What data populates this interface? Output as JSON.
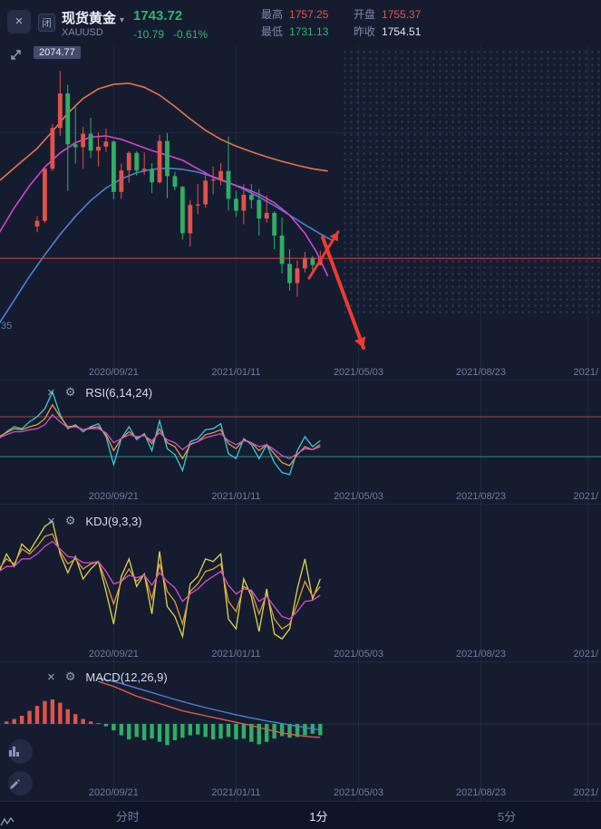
{
  "colors": {
    "up_candle": "#e0534b",
    "down_candle": "#2fae66",
    "price_line": "#e0443c",
    "text_green": "#33b46a",
    "text_red": "#e0534b",
    "annotation_red": "#ed3b30"
  },
  "header": {
    "market_badge": "闭",
    "symbol_name": "现货黄金",
    "symbol_code": "XAUUSD",
    "price": "1743.72",
    "change": "-10.79",
    "change_pct": "-0.61%",
    "stats": [
      {
        "label": "最高",
        "value": "1757.25",
        "color": "red"
      },
      {
        "label": "最低",
        "value": "1731.13",
        "color": "green"
      },
      {
        "label": "开盘",
        "value": "1755.37",
        "color": "red"
      },
      {
        "label": "昨收",
        "value": "1754.51",
        "color": "white"
      }
    ]
  },
  "main_chart": {
    "high_label": "2074.77",
    "left_axis_label": "35"
  },
  "panels": {
    "rsi": {
      "label": "RSI(6,14,24)"
    },
    "kdj": {
      "label": "KDJ(9,3,3)"
    },
    "macd": {
      "label": "MACD(12,26,9)"
    }
  },
  "bottom_tabs": [
    {
      "label": "分时",
      "active": false
    },
    {
      "label": "1分",
      "active": true
    },
    {
      "label": "5分",
      "active": false
    }
  ],
  "chart_data": [
    {
      "type": "candlestick",
      "ylim": [
        1560,
        2120
      ],
      "x_tick_indices": [
        10,
        26,
        42,
        58,
        72
      ],
      "x_tick_labels": [
        "2020/09/21",
        "2021/01/11",
        "2021/05/03",
        "2021/08/23",
        "2021/"
      ],
      "grid_prices": [
        1966
      ],
      "current_price": 1743.72,
      "high_label_value": 2074.77,
      "ohlc": [
        [
          1800,
          1818,
          1790,
          1810
        ],
        [
          1810,
          1906,
          1806,
          1902
        ],
        [
          1902,
          1981,
          1898,
          1974
        ],
        [
          1974,
          2074.77,
          1960,
          2035
        ],
        [
          2035,
          2050,
          1863,
          1945
        ],
        [
          1945,
          2015,
          1911,
          1940
        ],
        [
          1940,
          1976,
          1902,
          1964
        ],
        [
          1964,
          1992,
          1921,
          1934
        ],
        [
          1934,
          1966,
          1906,
          1941
        ],
        [
          1941,
          1973,
          1932,
          1950
        ],
        [
          1950,
          1952,
          1848,
          1861
        ],
        [
          1861,
          1911,
          1849,
          1899
        ],
        [
          1899,
          1933,
          1877,
          1930
        ],
        [
          1930,
          1933,
          1890,
          1899
        ],
        [
          1899,
          1931,
          1891,
          1902
        ],
        [
          1902,
          1912,
          1859,
          1878
        ],
        [
          1878,
          1962,
          1876,
          1951
        ],
        [
          1951,
          1965,
          1850,
          1889
        ],
        [
          1889,
          1897,
          1864,
          1870
        ],
        [
          1870,
          1872,
          1777,
          1788
        ],
        [
          1788,
          1847,
          1765,
          1838
        ],
        [
          1838,
          1875,
          1822,
          1839
        ],
        [
          1839,
          1897,
          1833,
          1881
        ],
        [
          1881,
          1906,
          1857,
          1883
        ],
        [
          1883,
          1912,
          1873,
          1898
        ],
        [
          1898,
          1959,
          1828,
          1849
        ],
        [
          1849,
          1863,
          1817,
          1828
        ],
        [
          1828,
          1875,
          1804,
          1856
        ],
        [
          1856,
          1875,
          1832,
          1847
        ],
        [
          1847,
          1866,
          1784,
          1814
        ],
        [
          1814,
          1855,
          1807,
          1824
        ],
        [
          1824,
          1827,
          1760,
          1784
        ],
        [
          1784,
          1816,
          1717,
          1734
        ],
        [
          1734,
          1760,
          1687,
          1700
        ],
        [
          1700,
          1740,
          1676,
          1726
        ],
        [
          1726,
          1755,
          1719,
          1745
        ],
        [
          1745,
          1748,
          1720,
          1732
        ],
        [
          1732,
          1757.25,
          1731.13,
          1743.72
        ]
      ],
      "ma_series": [
        {
          "name": "ma-slow",
          "color": "#e8734a",
          "points": [
            [
              -5,
              1880
            ],
            [
              -2,
              1915
            ],
            [
              0,
              1938
            ],
            [
              2,
              1968
            ],
            [
              4,
              2000
            ],
            [
              6,
              2026
            ],
            [
              8,
              2043
            ],
            [
              10,
              2051
            ],
            [
              12,
              2053
            ],
            [
              14,
              2046
            ],
            [
              16,
              2032
            ],
            [
              18,
              2012
            ],
            [
              20,
              1990
            ],
            [
              22,
              1970
            ],
            [
              24,
              1954
            ],
            [
              26,
              1942
            ],
            [
              28,
              1932
            ],
            [
              30,
              1923
            ],
            [
              32,
              1915
            ],
            [
              34,
              1908
            ],
            [
              36,
              1902
            ],
            [
              38,
              1898
            ]
          ]
        },
        {
          "name": "ma-long",
          "color": "#4b7fd6",
          "points": [
            [
              -5,
              1628
            ],
            [
              -3,
              1670
            ],
            [
              -1,
              1712
            ],
            [
              1,
              1750
            ],
            [
              3,
              1786
            ],
            [
              5,
              1818
            ],
            [
              7,
              1846
            ],
            [
              9,
              1868
            ],
            [
              11,
              1884
            ],
            [
              13,
              1895
            ],
            [
              15,
              1901
            ],
            [
              17,
              1903
            ],
            [
              19,
              1901
            ],
            [
              21,
              1896
            ],
            [
              23,
              1888
            ],
            [
              25,
              1878
            ],
            [
              27,
              1866
            ],
            [
              29,
              1852
            ],
            [
              31,
              1837
            ],
            [
              33,
              1820
            ],
            [
              35,
              1803
            ],
            [
              37,
              1787
            ],
            [
              38.5,
              1776
            ]
          ]
        },
        {
          "name": "ma-fast",
          "color": "#d443d4",
          "points": [
            [
              -5,
              1788
            ],
            [
              -3,
              1833
            ],
            [
              -1,
              1872
            ],
            [
              1,
              1905
            ],
            [
              3,
              1930
            ],
            [
              5,
              1948
            ],
            [
              7,
              1958
            ],
            [
              9,
              1960
            ],
            [
              11,
              1954
            ],
            [
              13,
              1944
            ],
            [
              15,
              1934
            ],
            [
              17,
              1926
            ],
            [
              19,
              1917
            ],
            [
              21,
              1902
            ],
            [
              23,
              1887
            ],
            [
              25,
              1877
            ],
            [
              27,
              1868
            ],
            [
              29,
              1857
            ],
            [
              31,
              1842
            ],
            [
              33,
              1820
            ],
            [
              35,
              1788
            ],
            [
              36.5,
              1755
            ],
            [
              38,
              1712
            ]
          ]
        }
      ],
      "annotations": [
        {
          "shape": "arrow",
          "from": [
            341,
            307
          ],
          "to": [
            373,
            256
          ],
          "width": 3
        },
        {
          "shape": "arrow",
          "from": [
            356,
            262
          ],
          "to": [
            401,
            384
          ],
          "width": 4
        }
      ]
    },
    {
      "type": "line",
      "name": "RSI",
      "params": "6,14,24",
      "ylim": [
        0,
        100
      ],
      "start_index": -5,
      "ref_lines": [
        {
          "value": 70,
          "color": "#a8403e"
        },
        {
          "value": 30,
          "color": "#2f8e7a"
        }
      ],
      "series": [
        {
          "name": "RSI6",
          "color": "#3fc6d8",
          "values": [
            48,
            55,
            60,
            58,
            65,
            70,
            78,
            95,
            72,
            58,
            62,
            55,
            60,
            63,
            50,
            22,
            48,
            60,
            47,
            53,
            36,
            66,
            38,
            32,
            16,
            45,
            48,
            57,
            58,
            63,
            33,
            28,
            48,
            42,
            28,
            42,
            24,
            14,
            12,
            36,
            50,
            40,
            46
          ]
        },
        {
          "name": "RSI14",
          "color": "#e09a3e",
          "values": [
            50,
            54,
            58,
            57,
            60,
            62,
            68,
            82,
            70,
            60,
            61,
            57,
            59,
            60,
            52,
            36,
            48,
            55,
            49,
            52,
            43,
            58,
            44,
            40,
            28,
            42,
            45,
            52,
            54,
            57,
            43,
            38,
            47,
            44,
            36,
            42,
            33,
            24,
            21,
            32,
            40,
            37,
            42
          ]
        },
        {
          "name": "RSI24",
          "color": "#d04fd0",
          "values": [
            49,
            52,
            55,
            55,
            57,
            58,
            62,
            72,
            65,
            59,
            60,
            57,
            58,
            58,
            54,
            44,
            48,
            52,
            50,
            51,
            46,
            54,
            47,
            44,
            37,
            43,
            45,
            49,
            51,
            53,
            46,
            42,
            46,
            44,
            40,
            42,
            37,
            31,
            28,
            33,
            38,
            37,
            40
          ]
        }
      ]
    },
    {
      "type": "line",
      "name": "KDJ",
      "params": "9,3,3",
      "ylim": [
        0,
        100
      ],
      "start_index": -5,
      "ref_lines": [],
      "series": [
        {
          "name": "J",
          "color": "#ded54e",
          "values": [
            55,
            70,
            60,
            78,
            72,
            82,
            92,
            96,
            70,
            55,
            68,
            50,
            58,
            64,
            40,
            14,
            52,
            66,
            44,
            54,
            22,
            72,
            28,
            20,
            4,
            46,
            52,
            66,
            64,
            70,
            18,
            10,
            50,
            36,
            8,
            42,
            6,
            2,
            10,
            42,
            66,
            34,
            50
          ]
        },
        {
          "name": "K",
          "color": "#e09a3e",
          "values": [
            58,
            66,
            62,
            74,
            70,
            76,
            84,
            86,
            72,
            62,
            66,
            58,
            62,
            64,
            48,
            30,
            48,
            58,
            48,
            54,
            34,
            62,
            40,
            32,
            14,
            40,
            46,
            56,
            58,
            62,
            32,
            24,
            44,
            40,
            22,
            38,
            18,
            10,
            14,
            30,
            48,
            36,
            44
          ]
        },
        {
          "name": "D",
          "color": "#d04fd0",
          "values": [
            56,
            60,
            60,
            66,
            66,
            70,
            76,
            80,
            74,
            68,
            67,
            63,
            63,
            64,
            56,
            46,
            48,
            53,
            51,
            53,
            45,
            55,
            48,
            43,
            32,
            38,
            42,
            48,
            52,
            56,
            45,
            38,
            42,
            41,
            32,
            36,
            28,
            20,
            18,
            24,
            32,
            33,
            37
          ]
        }
      ]
    },
    {
      "type": "macd",
      "name": "MACD",
      "params": "12,26,9",
      "ylim": [
        -35,
        30
      ],
      "hist": {
        "start_index": -4,
        "values": [
          1.5,
          3,
          5,
          8,
          11,
          14,
          15,
          13,
          9,
          6,
          3,
          1.5,
          0.5,
          -1.5,
          -4,
          -7,
          -9.5,
          -8,
          -10,
          -9,
          -11,
          -13,
          -10,
          -8.5,
          -7,
          -6.5,
          -8,
          -9.5,
          -9,
          -8,
          -9.5,
          -9,
          -11,
          -12.5,
          -11,
          -9,
          -7.5,
          -8.5,
          -8,
          -7,
          -6,
          -7
        ]
      },
      "dif": {
        "start_index": 8,
        "color": "#e05a4a",
        "values": [
          26,
          24.5,
          23,
          21,
          19,
          17,
          15.5,
          14,
          12.5,
          11,
          9.5,
          8,
          7,
          6,
          5,
          4,
          3,
          2,
          1,
          0,
          -1,
          -2.2,
          -3.4,
          -4.5,
          -5.5,
          -6.3,
          -7,
          -7.6,
          -8,
          -8.3
        ]
      },
      "dea": {
        "start_index": 8,
        "color": "#4b7fd6",
        "values": [
          28,
          27,
          26,
          24.8,
          23.4,
          22,
          20.6,
          19.2,
          17.8,
          16.4,
          15,
          13.7,
          12.4,
          11.2,
          10,
          8.9,
          7.8,
          6.7,
          5.6,
          4.6,
          3.6,
          2.7,
          1.8,
          1,
          0.2,
          -0.6,
          -1.4,
          -2.2,
          -3,
          -3.7
        ]
      }
    }
  ]
}
